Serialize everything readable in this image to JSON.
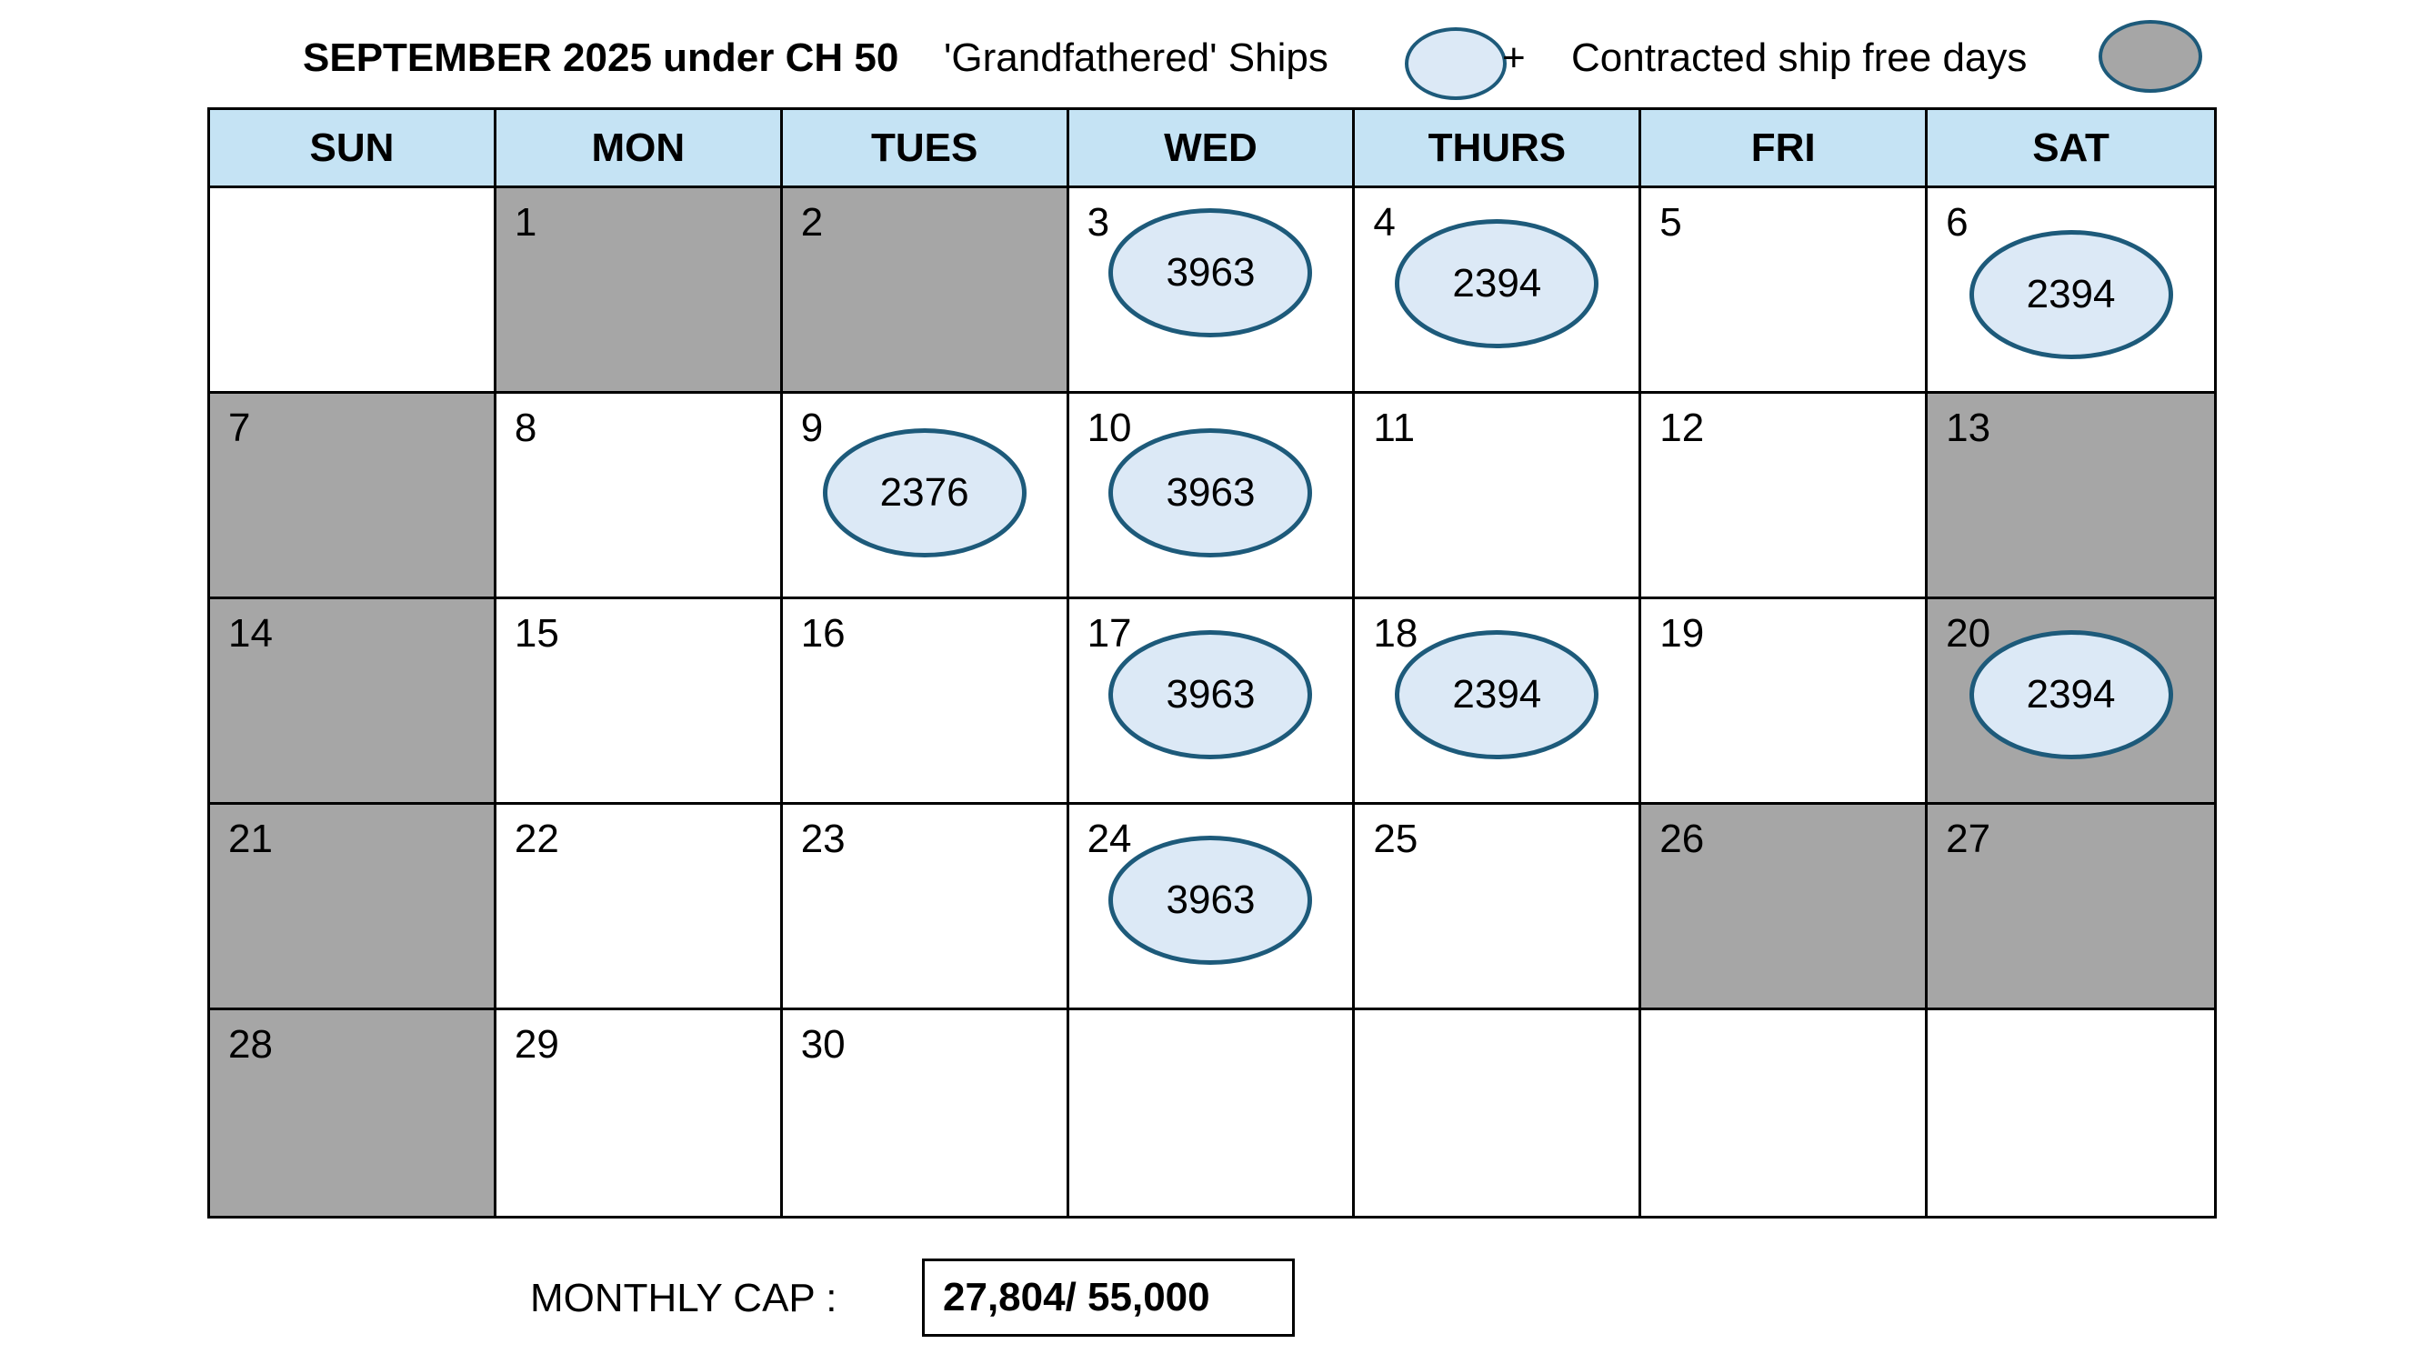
{
  "header": {
    "title": "SEPTEMBER 2025 under CH 50",
    "legend_grandfathered": "'Grandfathered' Ships",
    "legend_plus": "+",
    "legend_contracted": "Contracted ship free days"
  },
  "colors": {
    "header_bg": "#c5e3f4",
    "free_day": "#a6a6a6",
    "ship_fill": "#dce9f6",
    "ship_border": "#1d5a7a"
  },
  "weekdays": [
    "SUN",
    "MON",
    "TUES",
    "WED",
    "THURS",
    "FRI",
    "SAT"
  ],
  "weeks": [
    [
      {
        "day": ""
      },
      {
        "day": "1",
        "free": true
      },
      {
        "day": "2",
        "free": true
      },
      {
        "day": "3",
        "ship": "3963"
      },
      {
        "day": "4",
        "ship": "2394"
      },
      {
        "day": "5"
      },
      {
        "day": "6",
        "ship": "2394"
      }
    ],
    [
      {
        "day": "7",
        "free": true
      },
      {
        "day": "8"
      },
      {
        "day": "9",
        "ship": "2376"
      },
      {
        "day": "10",
        "ship": "3963"
      },
      {
        "day": "11"
      },
      {
        "day": "12"
      },
      {
        "day": "13",
        "free": true
      }
    ],
    [
      {
        "day": "14",
        "free": true
      },
      {
        "day": "15"
      },
      {
        "day": "16"
      },
      {
        "day": "17",
        "ship": "3963"
      },
      {
        "day": "18",
        "ship": "2394"
      },
      {
        "day": "19"
      },
      {
        "day": "20",
        "free": true,
        "ship": "2394"
      }
    ],
    [
      {
        "day": "21",
        "free": true
      },
      {
        "day": "22"
      },
      {
        "day": "23"
      },
      {
        "day": "24",
        "ship": "3963"
      },
      {
        "day": "25"
      },
      {
        "day": "26",
        "free": true
      },
      {
        "day": "27",
        "free": true
      }
    ],
    [
      {
        "day": "28",
        "free": true
      },
      {
        "day": "29"
      },
      {
        "day": "30"
      },
      {
        "day": ""
      },
      {
        "day": ""
      },
      {
        "day": ""
      },
      {
        "day": ""
      }
    ]
  ],
  "footer": {
    "cap_label": "MONTHLY CAP :",
    "cap_value": "27,804/ 55,000"
  }
}
